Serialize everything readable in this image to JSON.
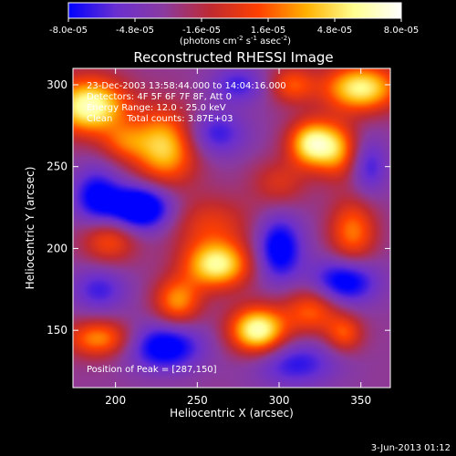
{
  "chart_data": {
    "type": "heatmap",
    "title": "Reconstructed RHESSI Image",
    "xlabel": "Heliocentric X (arcsec)",
    "ylabel": "Heliocentric Y (arcsec)",
    "xlim": [
      174,
      368
    ],
    "ylim": [
      115,
      310
    ],
    "x_ticks": [
      200,
      250,
      300,
      350
    ],
    "y_ticks": [
      150,
      200,
      250,
      300
    ],
    "colorbar": {
      "range": [
        -8e-05,
        8e-05
      ],
      "tick_labels": [
        "-8.0e-05",
        "-4.8e-05",
        "-1.6e-05",
        "1.6e-05",
        "4.8e-05",
        "8.0e-05"
      ],
      "unit_label": "(photons cm",
      "unit_sup1": "-2",
      "unit_mid": " s",
      "unit_sup2": "-1",
      "unit_end": " asec",
      "unit_sup3": "-2",
      "unit_close": ")",
      "colormap": [
        "#0000ff",
        "#6a2fd0",
        "#8a3aa0",
        "#c02a30",
        "#ff4000",
        "#ffb000",
        "#ffff90",
        "#ffffff"
      ]
    },
    "annotations": {
      "time": "23-Dec-2003 13:58:44.000 to 14:04:16.000",
      "detectors": "Detectors: 4F 5F 6F 7F 8F, Att 0",
      "energy": "Energy Range: 12.0 - 25.0 keV",
      "clean": "Clean     Total counts: 3.87E+03",
      "peak": "Position of Peak = [287,150]"
    },
    "peak": {
      "x": 287,
      "y": 150
    },
    "sources": [
      {
        "x": 184,
        "y": 287,
        "amp": 1.0,
        "sx": 16,
        "sy": 12
      },
      {
        "x": 230,
        "y": 262,
        "amp": 0.8,
        "sx": 14,
        "sy": 16
      },
      {
        "x": 205,
        "y": 265,
        "amp": 0.35,
        "sx": 10,
        "sy": 8
      },
      {
        "x": 320,
        "y": 264,
        "amp": 0.9,
        "sx": 10,
        "sy": 10
      },
      {
        "x": 336,
        "y": 260,
        "amp": 0.55,
        "sx": 9,
        "sy": 12
      },
      {
        "x": 350,
        "y": 298,
        "amp": 0.9,
        "sx": 16,
        "sy": 10
      },
      {
        "x": 308,
        "y": 300,
        "amp": 0.45,
        "sx": 10,
        "sy": 8
      },
      {
        "x": 258,
        "y": 215,
        "amp": 0.35,
        "sx": 18,
        "sy": 12
      },
      {
        "x": 262,
        "y": 190,
        "amp": 0.9,
        "sx": 14,
        "sy": 10
      },
      {
        "x": 287,
        "y": 150,
        "amp": 1.0,
        "sx": 12,
        "sy": 10
      },
      {
        "x": 320,
        "y": 162,
        "amp": 0.5,
        "sx": 12,
        "sy": 10
      },
      {
        "x": 345,
        "y": 210,
        "amp": 0.55,
        "sx": 10,
        "sy": 14
      },
      {
        "x": 340,
        "y": 148,
        "amp": 0.45,
        "sx": 8,
        "sy": 8
      },
      {
        "x": 190,
        "y": 145,
        "amp": 0.6,
        "sx": 14,
        "sy": 8
      },
      {
        "x": 196,
        "y": 205,
        "amp": 0.45,
        "sx": 12,
        "sy": 10
      },
      {
        "x": 238,
        "y": 168,
        "amp": 0.6,
        "sx": 10,
        "sy": 10
      },
      {
        "x": 300,
        "y": 240,
        "amp": 0.3,
        "sx": 12,
        "sy": 10
      },
      {
        "x": 215,
        "y": 225,
        "amp": -0.8,
        "sx": 14,
        "sy": 10
      },
      {
        "x": 188,
        "y": 232,
        "amp": -0.5,
        "sx": 10,
        "sy": 12
      },
      {
        "x": 300,
        "y": 200,
        "amp": -0.6,
        "sx": 10,
        "sy": 14
      },
      {
        "x": 340,
        "y": 180,
        "amp": -0.6,
        "sx": 14,
        "sy": 10
      },
      {
        "x": 355,
        "y": 250,
        "amp": -0.35,
        "sx": 8,
        "sy": 12
      },
      {
        "x": 230,
        "y": 140,
        "amp": -0.6,
        "sx": 16,
        "sy": 10
      },
      {
        "x": 260,
        "y": 270,
        "amp": -0.4,
        "sx": 14,
        "sy": 10
      },
      {
        "x": 310,
        "y": 130,
        "amp": -0.4,
        "sx": 18,
        "sy": 10
      },
      {
        "x": 190,
        "y": 175,
        "amp": -0.35,
        "sx": 12,
        "sy": 10
      },
      {
        "x": 275,
        "y": 300,
        "amp": -0.35,
        "sx": 12,
        "sy": 8
      }
    ]
  },
  "footer": {
    "timestamp": "3-Jun-2013 01:12"
  }
}
